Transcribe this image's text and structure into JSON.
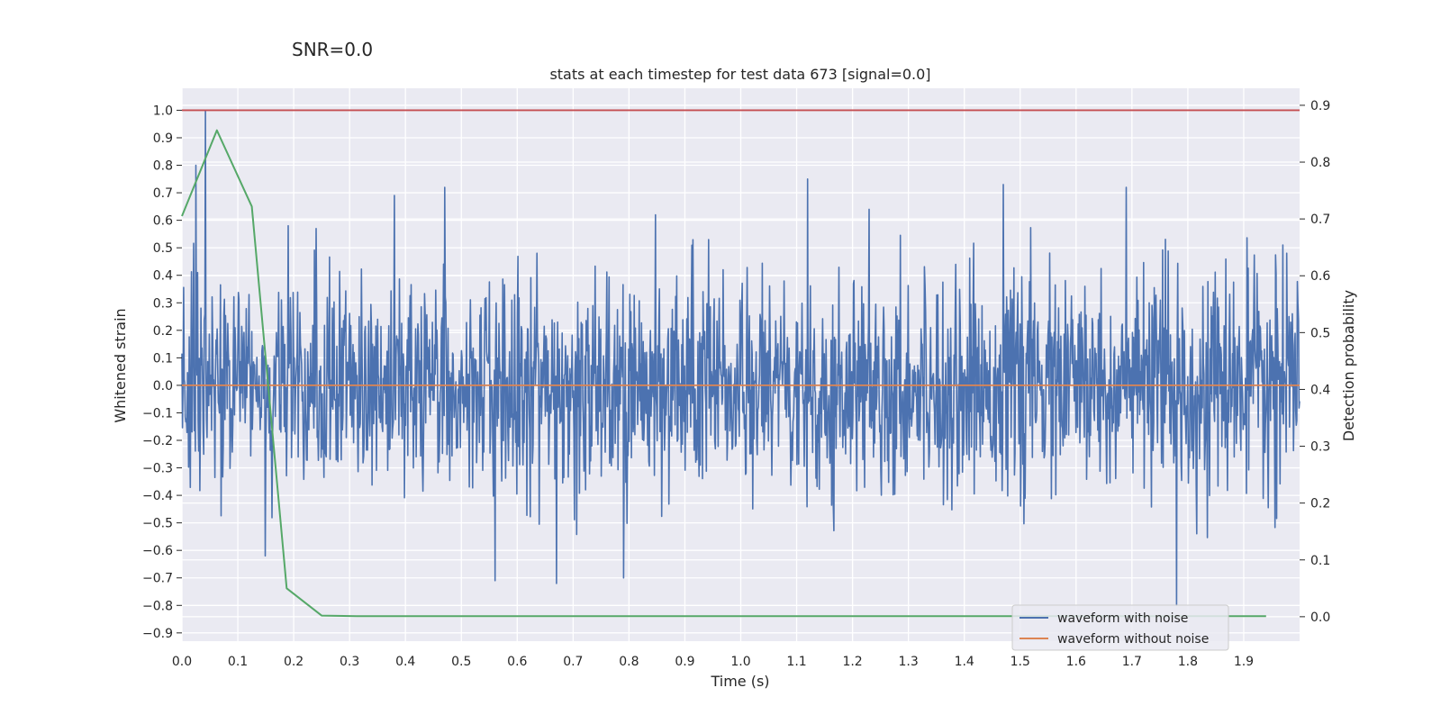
{
  "suptitle": "SNR=0.0",
  "chart_data": {
    "type": "line",
    "title": "stats at each timestep for test data 673 [signal=0.0]",
    "xlabel": "Time (s)",
    "ylabel": "Whitened strain",
    "y2label": "Detection probability",
    "xlim": [
      0.0,
      2.0
    ],
    "ylim": [
      -0.93,
      1.08
    ],
    "y2lim": [
      -0.043,
      0.93
    ],
    "xticks": [
      "0.0",
      "0.1",
      "0.2",
      "0.3",
      "0.4",
      "0.5",
      "0.6",
      "0.7",
      "0.8",
      "0.9",
      "1.0",
      "1.1",
      "1.2",
      "1.3",
      "1.4",
      "1.5",
      "1.6",
      "1.7",
      "1.8",
      "1.9"
    ],
    "yticks": [
      "1.0",
      "0.9",
      "0.8",
      "0.7",
      "0.6",
      "0.5",
      "0.4",
      "0.3",
      "0.2",
      "0.1",
      "0.0",
      "−0.1",
      "−0.2",
      "−0.3",
      "−0.4",
      "−0.5",
      "−0.6",
      "−0.7",
      "−0.8",
      "−0.9"
    ],
    "y2ticks": [
      "0.9",
      "0.8",
      "0.7",
      "0.6",
      "0.5",
      "0.4",
      "0.3",
      "0.2",
      "0.1",
      "0.0"
    ],
    "grid": true,
    "legend_position": "lower-right",
    "colors": {
      "noise": "#4c72b0",
      "clean": "#dd8452",
      "probability": "#55a868",
      "threshold": "#c44e52",
      "background": "#eaeaf2",
      "grid": "#ffffff"
    },
    "series": [
      {
        "name": "waveform with noise",
        "axis": "left",
        "note_peaks": [
          [
            0.042,
            1.0
          ],
          [
            0.025,
            0.8
          ],
          [
            0.12,
            0.33
          ],
          [
            0.19,
            0.58
          ],
          [
            0.24,
            0.57
          ],
          [
            0.38,
            0.69
          ],
          [
            0.47,
            0.72
          ],
          [
            0.56,
            -0.71
          ],
          [
            0.67,
            -0.72
          ],
          [
            0.79,
            -0.7
          ],
          [
            1.12,
            0.75
          ],
          [
            1.23,
            0.64
          ],
          [
            1.47,
            0.73
          ],
          [
            1.69,
            0.72
          ],
          [
            1.78,
            -0.8
          ],
          [
            1.97,
            0.51
          ]
        ]
      },
      {
        "name": "waveform without noise",
        "axis": "left",
        "x": [
          0.0,
          2.0
        ],
        "y": [
          0.0,
          0.0
        ]
      },
      {
        "axis": "right",
        "x": [
          0.0,
          0.0625,
          0.125,
          0.1875,
          0.25,
          0.3125,
          0.5,
          1.0,
          1.5,
          1.94
        ],
        "y": [
          0.705,
          0.856,
          0.722,
          0.05,
          0.002,
          0.001,
          0.001,
          0.001,
          0.001,
          0.001
        ]
      },
      {
        "axis": "left",
        "x": [
          0.0,
          2.0
        ],
        "y": [
          1.0,
          1.0
        ]
      }
    ]
  }
}
